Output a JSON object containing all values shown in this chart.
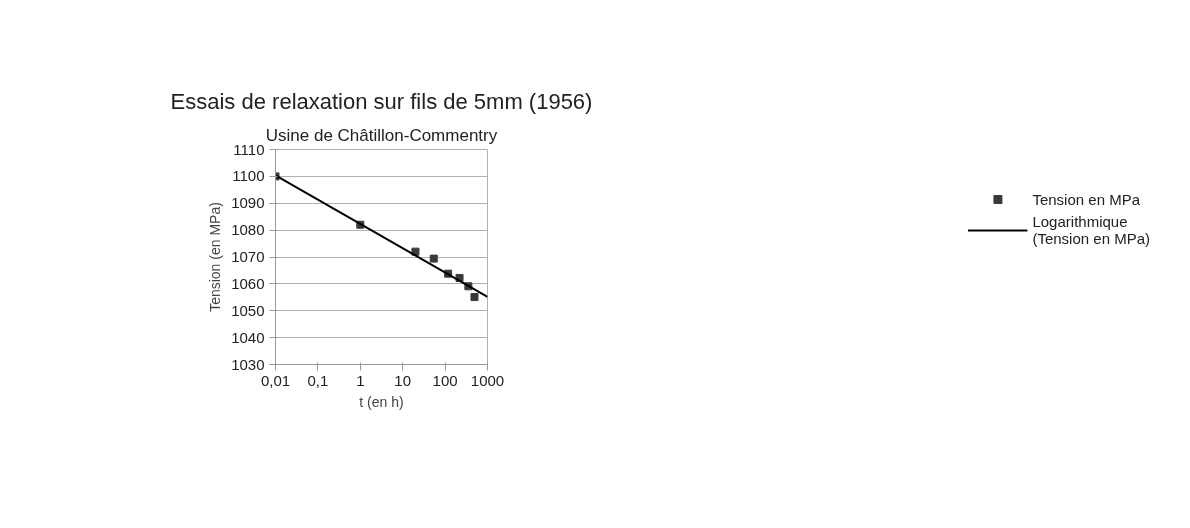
{
  "chart_data": {
    "type": "scatter",
    "title": "Essais de relaxation sur fils de 5mm (1956)",
    "subtitle": "Usine de Châtillon-Commentry",
    "xlabel": "t (en h)",
    "ylabel": "Tension (en MPa)",
    "log": "x",
    "grid": "y",
    "legend": "right",
    "marker": "square",
    "xlim": [
      0.01,
      1000
    ],
    "xticks": [
      {
        "value": 0.01,
        "label": "0,01"
      },
      {
        "value": 0.1,
        "label": "0,1"
      },
      1,
      10,
      100,
      1000
    ],
    "ylim": [
      1030,
      1110
    ],
    "yticks": [
      1030,
      1040,
      1050,
      1060,
      1070,
      1080,
      1090,
      1100,
      1110
    ],
    "series": [
      {
        "name": "Tension en MPa",
        "color": "#3a3a3a",
        "x": [
          0.01,
          1,
          20,
          54,
          118,
          219,
          354,
          493
        ],
        "values": [
          1100,
          1082,
          1072,
          1069.4,
          1063.8,
          1062.2,
          1059.1,
          1055.1
        ]
      },
      {
        "name": "Logarithmique\n(Tension en MPa)",
        "color": "#000000",
        "type": "line",
        "marker": "none",
        "line_style": "solid",
        "x": [
          0.01,
          1000
        ],
        "values": [
          1100.4,
          1055.2
        ]
      }
    ]
  }
}
